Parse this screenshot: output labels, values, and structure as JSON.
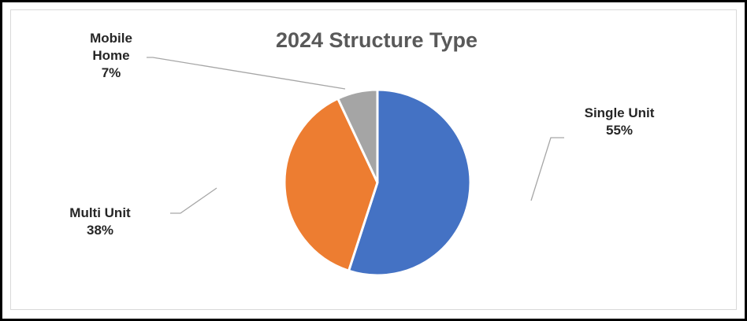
{
  "chart_data": {
    "type": "pie",
    "title": "2024 Structure Type",
    "slices": [
      {
        "label": "Single Unit",
        "value": 55,
        "percent_label": "55%",
        "color": "#4472C4"
      },
      {
        "label": "Multi Unit",
        "value": 38,
        "percent_label": "38%",
        "color": "#ED7D31"
      },
      {
        "label": "Mobile Home",
        "label_lines": [
          "Mobile",
          "Home"
        ],
        "value": 7,
        "percent_label": "7%",
        "color": "#A5A5A5"
      }
    ],
    "leader_line_color": "#A6A6A6",
    "legend": "none",
    "data_labels": "category name and percentage with leader lines"
  }
}
